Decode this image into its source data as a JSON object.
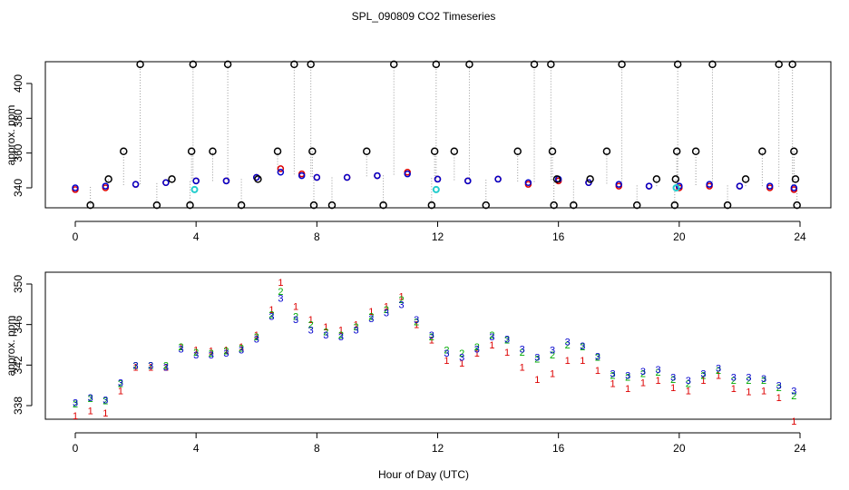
{
  "chart_data": [
    {
      "type": "scatter",
      "title": "SPL_090809  CO2 Timeseries",
      "xlabel": "",
      "ylabel": "approx. ppm",
      "xlim": [
        0,
        24
      ],
      "ylim": [
        330,
        410
      ],
      "xticks": [
        0,
        4,
        8,
        12,
        16,
        20,
        24
      ],
      "yticks": [
        340,
        360,
        380,
        400
      ],
      "grid": false,
      "colors": {
        "red": "#dd0000",
        "blue": "#0000cc",
        "green": "#00aa00",
        "cyan": "#22cccc",
        "black": "#000000",
        "gray": "#999999"
      },
      "series": [
        {
          "name": "red series",
          "color": "#dd0000",
          "points": [
            [
              0,
              339
            ],
            [
              1,
              340
            ],
            [
              2,
              342
            ],
            [
              3,
              343
            ],
            [
              4,
              344
            ],
            [
              5,
              344
            ],
            [
              6,
              346
            ],
            [
              6.8,
              351
            ],
            [
              7.5,
              348
            ],
            [
              8,
              346
            ],
            [
              9,
              346
            ],
            [
              10,
              347
            ],
            [
              11,
              349
            ],
            [
              12,
              345
            ],
            [
              13,
              344
            ],
            [
              14,
              345
            ],
            [
              15,
              342
            ],
            [
              16,
              344
            ],
            [
              17,
              343
            ],
            [
              18,
              341
            ],
            [
              19,
              341
            ],
            [
              20,
              340
            ],
            [
              21,
              341
            ],
            [
              22,
              341
            ],
            [
              23,
              340
            ],
            [
              23.8,
              339
            ]
          ]
        },
        {
          "name": "blue series",
          "color": "#0000cc",
          "points": [
            [
              0,
              340
            ],
            [
              1,
              341
            ],
            [
              2,
              342
            ],
            [
              3,
              343
            ],
            [
              4,
              344
            ],
            [
              5,
              344
            ],
            [
              6,
              346
            ],
            [
              6.8,
              349
            ],
            [
              7.5,
              347
            ],
            [
              8,
              346
            ],
            [
              9,
              346
            ],
            [
              10,
              347
            ],
            [
              11,
              348
            ],
            [
              12,
              345
            ],
            [
              13,
              344
            ],
            [
              14,
              345
            ],
            [
              15,
              343
            ],
            [
              16,
              345
            ],
            [
              17,
              343
            ],
            [
              18,
              342
            ],
            [
              19,
              341
            ],
            [
              20,
              341
            ],
            [
              21,
              342
            ],
            [
              22,
              341
            ],
            [
              23,
              341
            ],
            [
              23.8,
              340
            ]
          ]
        },
        {
          "name": "cyan points",
          "color": "#22cccc",
          "points": [
            [
              3.95,
              339
            ],
            [
              11.95,
              339
            ],
            [
              19.9,
              340
            ]
          ]
        },
        {
          "name": "black outliers",
          "color": "#000000",
          "points": [
            [
              0.5,
              330
            ],
            [
              1.1,
              345
            ],
            [
              1.6,
              361
            ],
            [
              2.15,
              411
            ],
            [
              2.7,
              330
            ],
            [
              3.2,
              345
            ],
            [
              3.8,
              330
            ],
            [
              3.85,
              361
            ],
            [
              3.9,
              411
            ],
            [
              4.55,
              361
            ],
            [
              5.05,
              411
            ],
            [
              5.5,
              330
            ],
            [
              6.05,
              345
            ],
            [
              6.7,
              361
            ],
            [
              7.25,
              411
            ],
            [
              7.8,
              411
            ],
            [
              7.85,
              361
            ],
            [
              7.9,
              330
            ],
            [
              8.5,
              330
            ],
            [
              9.65,
              361
            ],
            [
              10.2,
              330
            ],
            [
              10.55,
              411
            ],
            [
              11.8,
              330
            ],
            [
              11.9,
              361
            ],
            [
              11.95,
              411
            ],
            [
              12.55,
              361
            ],
            [
              13.05,
              411
            ],
            [
              13.6,
              330
            ],
            [
              14.65,
              361
            ],
            [
              15.2,
              411
            ],
            [
              15.75,
              411
            ],
            [
              15.8,
              361
            ],
            [
              15.85,
              330
            ],
            [
              15.95,
              345
            ],
            [
              16.5,
              330
            ],
            [
              17.05,
              345
            ],
            [
              17.6,
              361
            ],
            [
              18.1,
              411
            ],
            [
              18.6,
              330
            ],
            [
              19.25,
              345
            ],
            [
              19.85,
              330
            ],
            [
              19.88,
              345
            ],
            [
              19.92,
              361
            ],
            [
              19.95,
              411
            ],
            [
              20.55,
              361
            ],
            [
              21.1,
              411
            ],
            [
              21.6,
              330
            ],
            [
              22.2,
              345
            ],
            [
              22.75,
              361
            ],
            [
              23.3,
              411
            ],
            [
              23.75,
              411
            ],
            [
              23.8,
              361
            ],
            [
              23.85,
              345
            ],
            [
              23.9,
              330
            ]
          ]
        }
      ]
    },
    {
      "type": "scatter",
      "title": "",
      "xlabel": "Hour of Day (UTC)",
      "ylabel": "approx. ppm",
      "xlim": [
        0,
        24
      ],
      "ylim": [
        336,
        350
      ],
      "xticks": [
        0,
        4,
        8,
        12,
        16,
        20,
        24
      ],
      "yticks": [
        338,
        342,
        346,
        350
      ],
      "grid": false,
      "series": [
        {
          "name": "1",
          "symbol": "1",
          "color": "#dd0000",
          "points": [
            [
              0,
              337.0
            ],
            [
              0.5,
              337.5
            ],
            [
              1,
              337.3
            ],
            [
              1.5,
              339.5
            ],
            [
              2,
              341.8
            ],
            [
              2.5,
              341.8
            ],
            [
              3,
              341.8
            ],
            [
              3.5,
              343.8
            ],
            [
              4,
              343.5
            ],
            [
              4.5,
              343.4
            ],
            [
              5,
              343.5
            ],
            [
              5.5,
              343.8
            ],
            [
              6,
              345.0
            ],
            [
              6.5,
              347.5
            ],
            [
              6.8,
              350.2
            ],
            [
              7.3,
              347.8
            ],
            [
              7.8,
              346.5
            ],
            [
              8.3,
              345.8
            ],
            [
              8.8,
              345.5
            ],
            [
              9.3,
              346.0
            ],
            [
              9.8,
              347.3
            ],
            [
              10.3,
              347.8
            ],
            [
              10.8,
              348.8
            ],
            [
              11.3,
              346.0
            ],
            [
              11.8,
              344.5
            ],
            [
              12.3,
              342.5
            ],
            [
              12.8,
              342.2
            ],
            [
              13.3,
              343.2
            ],
            [
              13.8,
              344.0
            ],
            [
              14.3,
              343.3
            ],
            [
              14.8,
              341.8
            ],
            [
              15.3,
              340.6
            ],
            [
              15.8,
              341.2
            ],
            [
              16.3,
              342.5
            ],
            [
              16.8,
              342.5
            ],
            [
              17.3,
              341.5
            ],
            [
              17.8,
              340.2
            ],
            [
              18.3,
              339.7
            ],
            [
              18.8,
              340.3
            ],
            [
              19.3,
              340.5
            ],
            [
              19.8,
              339.8
            ],
            [
              20.3,
              339.5
            ],
            [
              20.8,
              340.5
            ],
            [
              21.3,
              341.0
            ],
            [
              21.8,
              339.7
            ],
            [
              22.3,
              339.4
            ],
            [
              22.8,
              339.5
            ],
            [
              23.3,
              338.8
            ],
            [
              23.8,
              336.5
            ]
          ]
        },
        {
          "name": "2",
          "symbol": "2",
          "color": "#00aa00",
          "points": [
            [
              0,
              338.2
            ],
            [
              0.5,
              338.7
            ],
            [
              1,
              338.5
            ],
            [
              1.5,
              340.2
            ],
            [
              2,
              342.0
            ],
            [
              2.5,
              342.0
            ],
            [
              3,
              342.0
            ],
            [
              3.5,
              343.8
            ],
            [
              4,
              343.3
            ],
            [
              4.5,
              343.2
            ],
            [
              5,
              343.4
            ],
            [
              5.5,
              343.7
            ],
            [
              6,
              344.8
            ],
            [
              6.5,
              347.0
            ],
            [
              6.8,
              349.3
            ],
            [
              7.3,
              346.8
            ],
            [
              7.8,
              346.0
            ],
            [
              8.3,
              345.3
            ],
            [
              8.8,
              345.0
            ],
            [
              9.3,
              345.8
            ],
            [
              9.8,
              346.8
            ],
            [
              10.3,
              347.5
            ],
            [
              10.8,
              348.5
            ],
            [
              11.3,
              346.3
            ],
            [
              11.8,
              344.8
            ],
            [
              12.3,
              343.5
            ],
            [
              12.8,
              343.2
            ],
            [
              13.3,
              343.8
            ],
            [
              13.8,
              345.0
            ],
            [
              14.3,
              344.5
            ],
            [
              14.8,
              343.3
            ],
            [
              15.3,
              342.6
            ],
            [
              15.8,
              343.0
            ],
            [
              16.3,
              344.0
            ],
            [
              16.8,
              343.8
            ],
            [
              17.3,
              342.8
            ],
            [
              17.8,
              341.0
            ],
            [
              18.3,
              340.8
            ],
            [
              18.8,
              341.2
            ],
            [
              19.3,
              341.3
            ],
            [
              19.8,
              340.6
            ],
            [
              20.3,
              340.2
            ],
            [
              20.8,
              341.0
            ],
            [
              21.3,
              341.5
            ],
            [
              21.8,
              340.5
            ],
            [
              22.3,
              340.5
            ],
            [
              22.8,
              340.5
            ],
            [
              23.3,
              339.8
            ],
            [
              23.8,
              339.0
            ]
          ]
        },
        {
          "name": "3",
          "symbol": "3",
          "color": "#0000cc",
          "points": [
            [
              0,
              338.3
            ],
            [
              0.5,
              338.8
            ],
            [
              1,
              338.6
            ],
            [
              1.5,
              340.3
            ],
            [
              2,
              342.0
            ],
            [
              2.5,
              342.0
            ],
            [
              3,
              341.8
            ],
            [
              3.5,
              343.6
            ],
            [
              4,
              343.0
            ],
            [
              4.5,
              343.0
            ],
            [
              5,
              343.2
            ],
            [
              5.5,
              343.5
            ],
            [
              6,
              344.6
            ],
            [
              6.5,
              346.8
            ],
            [
              6.8,
              348.6
            ],
            [
              7.3,
              346.5
            ],
            [
              7.8,
              345.5
            ],
            [
              8.3,
              345.0
            ],
            [
              8.8,
              344.8
            ],
            [
              9.3,
              345.5
            ],
            [
              9.8,
              346.6
            ],
            [
              10.3,
              347.2
            ],
            [
              10.8,
              348.0
            ],
            [
              11.3,
              346.5
            ],
            [
              11.8,
              345.0
            ],
            [
              12.3,
              343.2
            ],
            [
              12.8,
              342.8
            ],
            [
              13.3,
              343.6
            ],
            [
              13.8,
              344.8
            ],
            [
              14.3,
              344.6
            ],
            [
              14.8,
              343.6
            ],
            [
              15.3,
              342.8
            ],
            [
              15.8,
              343.5
            ],
            [
              16.3,
              344.3
            ],
            [
              16.8,
              343.9
            ],
            [
              17.3,
              342.9
            ],
            [
              17.8,
              341.2
            ],
            [
              18.3,
              341.0
            ],
            [
              18.8,
              341.4
            ],
            [
              19.3,
              341.6
            ],
            [
              19.8,
              340.8
            ],
            [
              20.3,
              340.5
            ],
            [
              20.8,
              341.2
            ],
            [
              21.3,
              341.7
            ],
            [
              21.8,
              340.8
            ],
            [
              22.3,
              340.8
            ],
            [
              22.8,
              340.7
            ],
            [
              23.3,
              340.0
            ],
            [
              23.8,
              339.5
            ]
          ]
        }
      ]
    }
  ]
}
